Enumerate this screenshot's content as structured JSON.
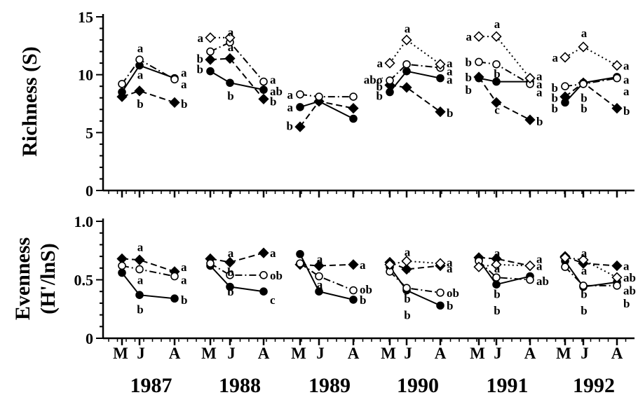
{
  "chart_data": [
    {
      "type": "line",
      "panel": "richness",
      "ylabel": "Richness (S)",
      "ylim": [
        0,
        15
      ],
      "yticks": [
        "0",
        "5",
        "10",
        "15"
      ],
      "years": [
        "1987",
        "1988",
        "1989",
        "1990",
        "1991",
        "1992"
      ],
      "months": [
        "M",
        "J",
        "A"
      ],
      "series": [
        {
          "marker": "filled-circle",
          "style": "solid",
          "points": [
            [
              8.5,
              10.8,
              9.7
            ],
            [
              10.3,
              9.3,
              8.7
            ],
            [
              7.2,
              7.7,
              6.2
            ],
            [
              8.5,
              10.3,
              9.7
            ],
            [
              9.7,
              9.4,
              9.4
            ],
            [
              7.6,
              9.3,
              9.8
            ]
          ]
        },
        {
          "marker": "filled-diamond",
          "style": "dashed",
          "points": [
            [
              8.1,
              8.6,
              7.6
            ],
            [
              11.3,
              11.4,
              7.9
            ],
            [
              5.5,
              7.7,
              7.1
            ],
            [
              9.1,
              8.9,
              6.8
            ],
            [
              9.8,
              7.6,
              6.1
            ],
            [
              8.1,
              9.3,
              7.1
            ]
          ]
        },
        {
          "marker": "open-circle",
          "style": "dash-dot",
          "points": [
            [
              9.2,
              11.3,
              9.6
            ],
            [
              12.0,
              12.8,
              9.4
            ],
            [
              8.3,
              8.1,
              8.1
            ],
            [
              9.5,
              10.9,
              10.6
            ],
            [
              11.1,
              10.9,
              9.2
            ],
            [
              9.0,
              9.2,
              9.7
            ]
          ]
        },
        {
          "marker": "open-diamond",
          "style": "dotted",
          "points": [
            [
              null,
              null,
              null
            ],
            [
              13.2,
              13.2,
              null
            ],
            [
              null,
              null,
              null
            ],
            [
              11.0,
              13.0,
              10.9
            ],
            [
              13.3,
              13.3,
              9.7
            ],
            [
              11.5,
              12.4,
              10.8
            ]
          ]
        }
      ],
      "significance_labels": [
        {
          "year": 0,
          "month": 1,
          "text": "a",
          "value": 12.3
        },
        {
          "year": 0,
          "month": 1,
          "text": "a",
          "value": 10.0
        },
        {
          "year": 0,
          "month": 1,
          "text": "b",
          "value": 7.5
        },
        {
          "year": 0,
          "month": 2,
          "text": "a",
          "value": 10.2
        },
        {
          "year": 0,
          "month": 2,
          "text": "a",
          "value": 9.2
        },
        {
          "year": 0,
          "month": 2,
          "text": "b",
          "value": 7.5
        },
        {
          "year": 1,
          "month": 0,
          "text": "a",
          "value": 13.2
        },
        {
          "year": 1,
          "month": 1,
          "text": "a",
          "value": 13.7
        },
        {
          "year": 1,
          "month": 0,
          "text": "b",
          "value": 11.4
        },
        {
          "year": 1,
          "month": 1,
          "text": "a",
          "value": 12.4
        },
        {
          "year": 1,
          "month": 0,
          "text": "b",
          "value": 10.5
        },
        {
          "year": 1,
          "month": 1,
          "text": "b",
          "value": 8.2
        },
        {
          "year": 1,
          "month": 2,
          "text": "a",
          "value": 9.6
        },
        {
          "year": 1,
          "month": 2,
          "text": "ab",
          "value": 8.6
        },
        {
          "year": 1,
          "month": 2,
          "text": "b",
          "value": 7.7
        },
        {
          "year": 2,
          "month": 0,
          "text": "a",
          "value": 8.3
        },
        {
          "year": 2,
          "month": 0,
          "text": "a",
          "value": 7.2
        },
        {
          "year": 2,
          "month": 0,
          "text": "b",
          "value": 5.6
        },
        {
          "year": 3,
          "month": 0,
          "text": "a",
          "value": 11.0
        },
        {
          "year": 3,
          "month": 1,
          "text": "a",
          "value": 14.0
        },
        {
          "year": 3,
          "month": 0,
          "text": "abσ",
          "value": 9.6
        },
        {
          "year": 3,
          "month": 0,
          "text": "b",
          "value": 9.0
        },
        {
          "year": 3,
          "month": 0,
          "text": "b",
          "value": 8.2
        },
        {
          "year": 3,
          "month": 2,
          "text": "a",
          "value": 11.0
        },
        {
          "year": 3,
          "month": 2,
          "text": "a",
          "value": 10.3
        },
        {
          "year": 3,
          "month": 2,
          "text": "a",
          "value": 9.6
        },
        {
          "year": 3,
          "month": 2,
          "text": "b",
          "value": 6.7
        },
        {
          "year": 4,
          "month": 0,
          "text": "a",
          "value": 13.3
        },
        {
          "year": 4,
          "month": 1,
          "text": "a",
          "value": 14.4
        },
        {
          "year": 4,
          "month": 0,
          "text": "b",
          "value": 11.1
        },
        {
          "year": 4,
          "month": 1,
          "text": "b",
          "value": 10.1
        },
        {
          "year": 4,
          "month": 0,
          "text": "b",
          "value": 9.8
        },
        {
          "year": 4,
          "month": 0,
          "text": "b",
          "value": 8.7
        },
        {
          "year": 4,
          "month": 1,
          "text": "c",
          "value": 7.0
        },
        {
          "year": 4,
          "month": 2,
          "text": "a",
          "value": 9.9
        },
        {
          "year": 4,
          "month": 2,
          "text": "a",
          "value": 9.2
        },
        {
          "year": 4,
          "month": 2,
          "text": "a",
          "value": 8.5
        },
        {
          "year": 4,
          "month": 2,
          "text": "b",
          "value": 6.0
        },
        {
          "year": 5,
          "month": 0,
          "text": "a",
          "value": 11.5
        },
        {
          "year": 5,
          "month": 1,
          "text": "a",
          "value": 13.6
        },
        {
          "year": 5,
          "month": 0,
          "text": "b",
          "value": 8.9
        },
        {
          "year": 5,
          "month": 0,
          "text": "b",
          "value": 8.0
        },
        {
          "year": 5,
          "month": 0,
          "text": "b",
          "value": 7.1
        },
        {
          "year": 5,
          "month": 1,
          "text": "b",
          "value": 8.0
        },
        {
          "year": 5,
          "month": 1,
          "text": "b",
          "value": 7.1
        },
        {
          "year": 5,
          "month": 2,
          "text": "a",
          "value": 10.8
        },
        {
          "year": 5,
          "month": 2,
          "text": "a",
          "value": 9.6
        },
        {
          "year": 5,
          "month": 2,
          "text": "a",
          "value": 8.6
        },
        {
          "year": 5,
          "month": 2,
          "text": "b",
          "value": 6.9
        }
      ]
    },
    {
      "type": "line",
      "panel": "evenness",
      "ylabel_line1": "Evenness",
      "ylabel_line2": "(H'/lnS)",
      "ylim": [
        0,
        1.0
      ],
      "yticks": [
        "0",
        "0.5",
        "1.0"
      ],
      "years": [
        "1987",
        "1988",
        "1989",
        "1990",
        "1991",
        "1992"
      ],
      "months": [
        "M",
        "J",
        "A"
      ],
      "series": [
        {
          "marker": "filled-circle",
          "style": "solid",
          "points": [
            [
              0.56,
              0.37,
              0.34
            ],
            [
              0.62,
              0.44,
              0.4
            ],
            [
              0.72,
              0.4,
              0.33
            ],
            [
              0.61,
              0.41,
              0.28
            ],
            [
              0.67,
              0.46,
              0.53
            ],
            [
              0.66,
              0.44,
              0.48
            ]
          ]
        },
        {
          "marker": "filled-diamond",
          "style": "dashed",
          "points": [
            [
              0.68,
              0.67,
              0.57
            ],
            [
              0.68,
              0.65,
              0.73
            ],
            [
              0.63,
              0.62,
              0.63
            ],
            [
              0.65,
              0.59,
              0.62
            ],
            [
              0.69,
              0.68,
              0.62
            ],
            [
              0.7,
              0.64,
              0.62
            ]
          ]
        },
        {
          "marker": "open-circle",
          "style": "dash-dot",
          "points": [
            [
              0.62,
              0.59,
              0.53
            ],
            [
              0.64,
              0.54,
              0.54
            ],
            [
              0.64,
              0.53,
              0.41
            ],
            [
              0.57,
              0.43,
              0.39
            ],
            [
              0.66,
              0.52,
              0.5
            ],
            [
              0.61,
              0.45,
              0.45
            ]
          ]
        },
        {
          "marker": "open-diamond",
          "style": "dotted",
          "points": [
            [
              null,
              null,
              null
            ],
            [
              null,
              null,
              null
            ],
            [
              null,
              null,
              null
            ],
            [
              0.63,
              0.66,
              0.64
            ],
            [
              0.61,
              0.63,
              0.62
            ],
            [
              0.69,
              0.67,
              0.52
            ]
          ]
        }
      ],
      "significance_labels": [
        {
          "year": 0,
          "month": 1,
          "text": "a",
          "value": 0.78
        },
        {
          "year": 0,
          "month": 1,
          "text": "a",
          "value": 0.5
        },
        {
          "year": 0,
          "month": 1,
          "text": "b",
          "value": 0.25
        },
        {
          "year": 0,
          "month": 2,
          "text": "a",
          "value": 0.61
        },
        {
          "year": 0,
          "month": 2,
          "text": "a",
          "value": 0.5
        },
        {
          "year": 0,
          "month": 2,
          "text": "b",
          "value": 0.33
        },
        {
          "year": 1,
          "month": 1,
          "text": "a",
          "value": 0.73
        },
        {
          "year": 1,
          "month": 1,
          "text": "b",
          "value": 0.57
        },
        {
          "year": 1,
          "month": 1,
          "text": "b",
          "value": 0.4
        },
        {
          "year": 1,
          "month": 2,
          "text": "a",
          "value": 0.73
        },
        {
          "year": 1,
          "month": 2,
          "text": "ob",
          "value": 0.54
        },
        {
          "year": 1,
          "month": 2,
          "text": "c",
          "value": 0.33
        },
        {
          "year": 2,
          "month": 1,
          "text": "a",
          "value": 0.68
        },
        {
          "year": 2,
          "month": 1,
          "text": "a",
          "value": 0.46
        },
        {
          "year": 2,
          "month": 2,
          "text": "a",
          "value": 0.63
        },
        {
          "year": 2,
          "month": 2,
          "text": "ob",
          "value": 0.42
        },
        {
          "year": 2,
          "month": 2,
          "text": "b",
          "value": 0.33
        },
        {
          "year": 3,
          "month": 1,
          "text": "a",
          "value": 0.74
        },
        {
          "year": 3,
          "month": 1,
          "text": "a",
          "value": 0.6
        },
        {
          "year": 3,
          "month": 1,
          "text": "b",
          "value": 0.34
        },
        {
          "year": 3,
          "month": 1,
          "text": "b",
          "value": 0.2
        },
        {
          "year": 3,
          "month": 2,
          "text": "a",
          "value": 0.65
        },
        {
          "year": 3,
          "month": 2,
          "text": "a",
          "value": 0.6
        },
        {
          "year": 3,
          "month": 2,
          "text": "ob",
          "value": 0.39
        },
        {
          "year": 3,
          "month": 2,
          "text": "b",
          "value": 0.28
        },
        {
          "year": 4,
          "month": 1,
          "text": "a",
          "value": 0.73
        },
        {
          "year": 4,
          "month": 1,
          "text": "a",
          "value": 0.6
        },
        {
          "year": 4,
          "month": 1,
          "text": "b",
          "value": 0.38
        },
        {
          "year": 4,
          "month": 1,
          "text": "b",
          "value": 0.24
        },
        {
          "year": 4,
          "month": 2,
          "text": "a",
          "value": 0.68
        },
        {
          "year": 4,
          "month": 2,
          "text": "a",
          "value": 0.62
        },
        {
          "year": 4,
          "month": 2,
          "text": "ab",
          "value": 0.49
        },
        {
          "year": 5,
          "month": 1,
          "text": "a",
          "value": 0.73
        },
        {
          "year": 5,
          "month": 1,
          "text": "a",
          "value": 0.58
        },
        {
          "year": 5,
          "month": 1,
          "text": "b",
          "value": 0.38
        },
        {
          "year": 5,
          "month": 1,
          "text": "b",
          "value": 0.24
        },
        {
          "year": 5,
          "month": 2,
          "text": "a",
          "value": 0.62
        },
        {
          "year": 5,
          "month": 2,
          "text": "ab",
          "value": 0.52
        },
        {
          "year": 5,
          "month": 2,
          "text": "ab",
          "value": 0.41
        },
        {
          "year": 5,
          "month": 2,
          "text": "b",
          "value": 0.3
        }
      ]
    }
  ]
}
